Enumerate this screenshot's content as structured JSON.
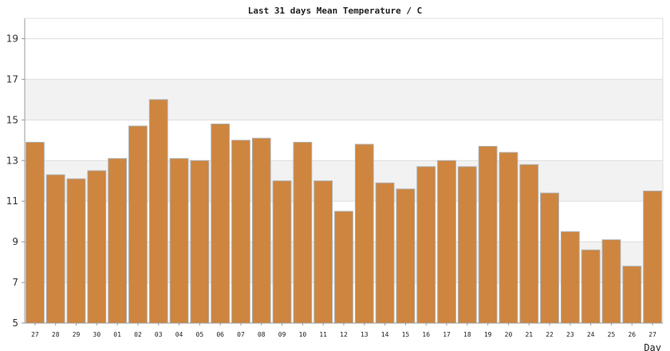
{
  "chart_data": {
    "type": "bar",
    "title": "Last 31 days Mean Temperature / C",
    "xlabel": "Day",
    "ylabel": "",
    "ylim": [
      5,
      20
    ],
    "yticks": [
      "5",
      "7",
      "9",
      "11",
      "13",
      "15",
      "17",
      "19"
    ],
    "grid": "horizontal bands",
    "colors": {
      "bar_fill": "#cd853f",
      "bar_stroke": "#b0b0b0",
      "band_alt": "#f2f2f2",
      "grid_line": "#dddddd",
      "axis": "#999999"
    },
    "categories": [
      "27",
      "28",
      "29",
      "30",
      "01",
      "02",
      "03",
      "04",
      "05",
      "06",
      "07",
      "08",
      "09",
      "10",
      "11",
      "12",
      "13",
      "14",
      "15",
      "16",
      "17",
      "18",
      "19",
      "20",
      "21",
      "22",
      "23",
      "24",
      "25",
      "26",
      "27"
    ],
    "values": [
      13.9,
      12.3,
      12.1,
      12.5,
      13.1,
      14.7,
      16.0,
      13.1,
      13.0,
      14.8,
      14.0,
      14.1,
      12.0,
      13.9,
      12.0,
      10.5,
      13.8,
      11.9,
      11.6,
      12.7,
      13.0,
      12.7,
      13.7,
      13.4,
      12.8,
      11.4,
      9.5,
      8.6,
      9.1,
      7.8,
      11.5
    ]
  }
}
